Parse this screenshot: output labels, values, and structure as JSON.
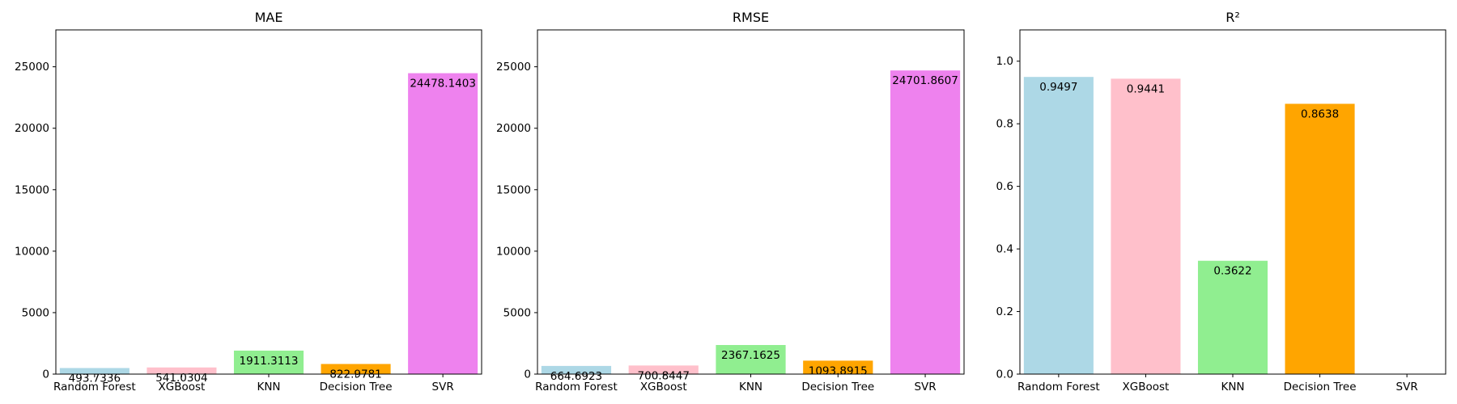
{
  "chart_data": [
    {
      "type": "bar",
      "title": "MAE",
      "categories": [
        "Random Forest",
        "XGBoost",
        "KNN",
        "Decision Tree",
        "SVR"
      ],
      "values": [
        493.7336,
        541.0304,
        1911.3113,
        822.9781,
        24478.1403
      ],
      "value_labels": [
        "493.7336",
        "541.0304",
        "1911.3113",
        "822.9781",
        "24478.1403"
      ],
      "colors": [
        "#add8e6",
        "#ffc0cb",
        "#90ee90",
        "#ffa500",
        "#ee82ee"
      ],
      "ylim": [
        0,
        28000
      ],
      "yticks": [
        0,
        5000,
        10000,
        15000,
        20000,
        25000
      ],
      "ytick_labels": [
        "0",
        "5000",
        "10000",
        "15000",
        "20000",
        "25000"
      ],
      "xlabel": "",
      "ylabel": "",
      "grid": false
    },
    {
      "type": "bar",
      "title": "RMSE",
      "categories": [
        "Random Forest",
        "XGBoost",
        "KNN",
        "Decision Tree",
        "SVR"
      ],
      "values": [
        664.6923,
        700.8447,
        2367.1625,
        1093.8915,
        24701.8607
      ],
      "value_labels": [
        "664.6923",
        "700.8447",
        "2367.1625",
        "1093.8915",
        "24701.8607"
      ],
      "colors": [
        "#add8e6",
        "#ffc0cb",
        "#90ee90",
        "#ffa500",
        "#ee82ee"
      ],
      "ylim": [
        0,
        28000
      ],
      "yticks": [
        0,
        5000,
        10000,
        15000,
        20000,
        25000
      ],
      "ytick_labels": [
        "0",
        "5000",
        "10000",
        "15000",
        "20000",
        "25000"
      ],
      "xlabel": "",
      "ylabel": "",
      "grid": false
    },
    {
      "type": "bar",
      "title": "R²",
      "categories": [
        "Random Forest",
        "XGBoost",
        "KNN",
        "Decision Tree",
        "SVR"
      ],
      "values": [
        0.9497,
        0.9441,
        0.3622,
        0.8638,
        0
      ],
      "value_labels": [
        "0.9497",
        "0.9441",
        "0.3622",
        "0.8638",
        ""
      ],
      "colors": [
        "#add8e6",
        "#ffc0cb",
        "#90ee90",
        "#ffa500",
        "#ee82ee"
      ],
      "ylim": [
        0,
        1.1
      ],
      "yticks": [
        0,
        0.2,
        0.4,
        0.6,
        0.8,
        1.0
      ],
      "ytick_labels": [
        "0.0",
        "0.2",
        "0.4",
        "0.6",
        "0.8",
        "1.0"
      ],
      "xlabel": "",
      "ylabel": "",
      "grid": false
    }
  ]
}
